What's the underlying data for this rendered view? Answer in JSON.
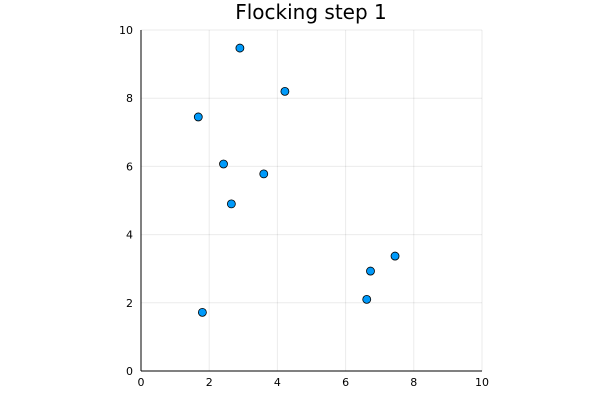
{
  "chart_data": {
    "type": "scatter",
    "title": "Flocking step 1",
    "xlabel": "",
    "ylabel": "",
    "xlim": [
      0,
      10
    ],
    "ylim": [
      0,
      10
    ],
    "xticks": [
      0,
      2,
      4,
      6,
      8,
      10
    ],
    "yticks": [
      0,
      2,
      4,
      6,
      8,
      10
    ],
    "grid": true,
    "legend": "none",
    "marker_color": "#009AFA",
    "points": [
      {
        "x": 1.68,
        "y": 7.45
      },
      {
        "x": 2.9,
        "y": 9.47
      },
      {
        "x": 4.22,
        "y": 8.2
      },
      {
        "x": 2.42,
        "y": 6.07
      },
      {
        "x": 3.6,
        "y": 5.78
      },
      {
        "x": 2.65,
        "y": 4.9
      },
      {
        "x": 1.8,
        "y": 1.72
      },
      {
        "x": 6.73,
        "y": 2.93
      },
      {
        "x": 7.45,
        "y": 3.37
      },
      {
        "x": 6.62,
        "y": 2.1
      }
    ]
  }
}
